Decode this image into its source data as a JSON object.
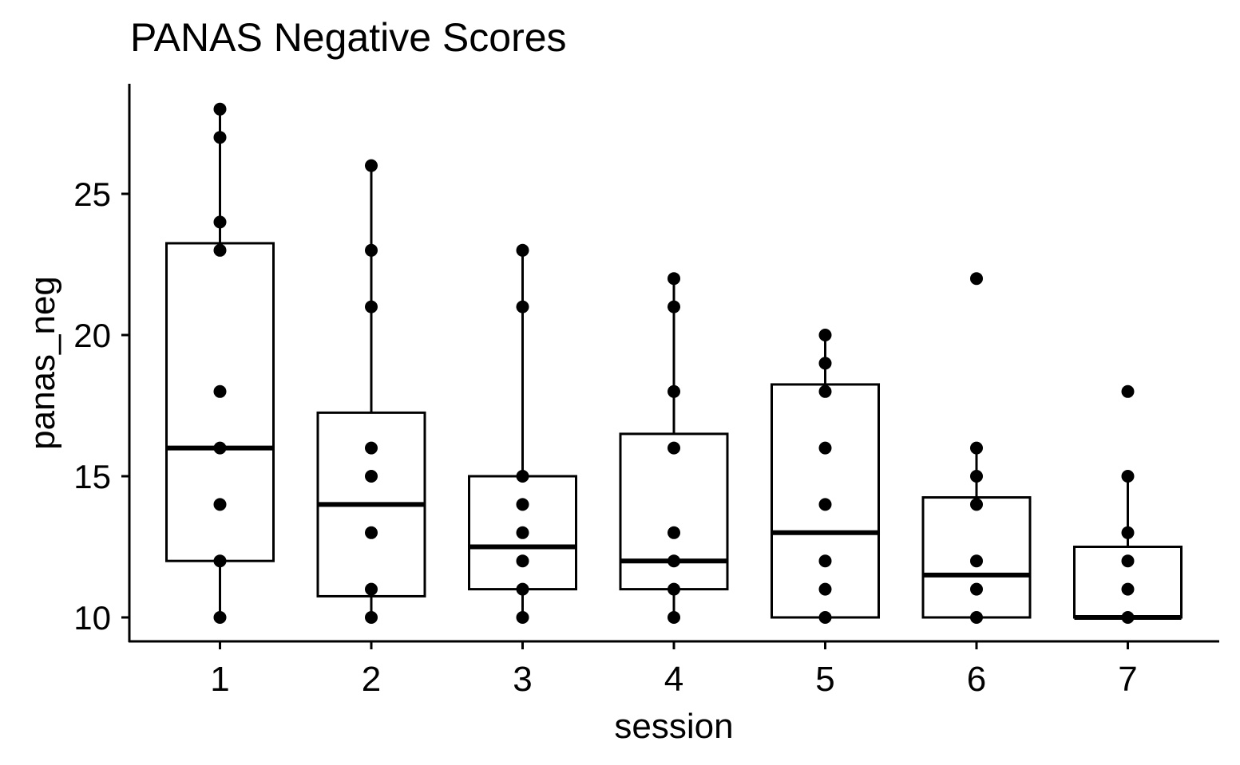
{
  "chart_data": {
    "type": "box",
    "title": "PANAS Negative Scores",
    "xlabel": "session",
    "ylabel": "panas_neg",
    "categories": [
      "1",
      "2",
      "3",
      "4",
      "5",
      "6",
      "7"
    ],
    "yticks": [
      10,
      15,
      20,
      25
    ],
    "ylim": [
      9.1,
      28.9
    ],
    "grid": false,
    "legend": "none",
    "boxes": [
      {
        "category": "1",
        "q1": 12,
        "median": 16,
        "q3": 23.25,
        "whisker_low": 10,
        "whisker_high": 28
      },
      {
        "category": "2",
        "q1": 10.75,
        "median": 14,
        "q3": 17.25,
        "whisker_low": 10,
        "whisker_high": 26
      },
      {
        "category": "3",
        "q1": 11,
        "median": 12.5,
        "q3": 15,
        "whisker_low": 10,
        "whisker_high": 23
      },
      {
        "category": "4",
        "q1": 11,
        "median": 12,
        "q3": 16.5,
        "whisker_low": 10,
        "whisker_high": 22
      },
      {
        "category": "5",
        "q1": 10,
        "median": 13,
        "q3": 18.25,
        "whisker_low": 10,
        "whisker_high": 20
      },
      {
        "category": "6",
        "q1": 10,
        "median": 11.5,
        "q3": 14.25,
        "whisker_low": 10,
        "whisker_high": 16
      },
      {
        "category": "7",
        "q1": 10,
        "median": 10,
        "q3": 12.5,
        "whisker_low": 10,
        "whisker_high": 15
      }
    ],
    "points": [
      {
        "category": "1",
        "values": [
          28,
          27,
          24,
          23,
          18,
          16,
          14,
          12,
          10
        ]
      },
      {
        "category": "2",
        "values": [
          26,
          23,
          21,
          16,
          15,
          13,
          11,
          10
        ]
      },
      {
        "category": "3",
        "values": [
          23,
          21,
          15,
          14,
          13,
          12,
          11,
          10
        ]
      },
      {
        "category": "4",
        "values": [
          22,
          21,
          18,
          16,
          13,
          12,
          11,
          10
        ]
      },
      {
        "category": "5",
        "values": [
          20,
          19,
          18,
          16,
          14,
          12,
          11,
          10
        ]
      },
      {
        "category": "6",
        "values": [
          22,
          16,
          15,
          14,
          12,
          11,
          10
        ]
      },
      {
        "category": "7",
        "values": [
          18,
          15,
          13,
          12,
          11,
          10
        ]
      }
    ],
    "colors": {
      "box_fill": "#ffffff",
      "stroke": "#000000",
      "point": "#000000"
    }
  }
}
